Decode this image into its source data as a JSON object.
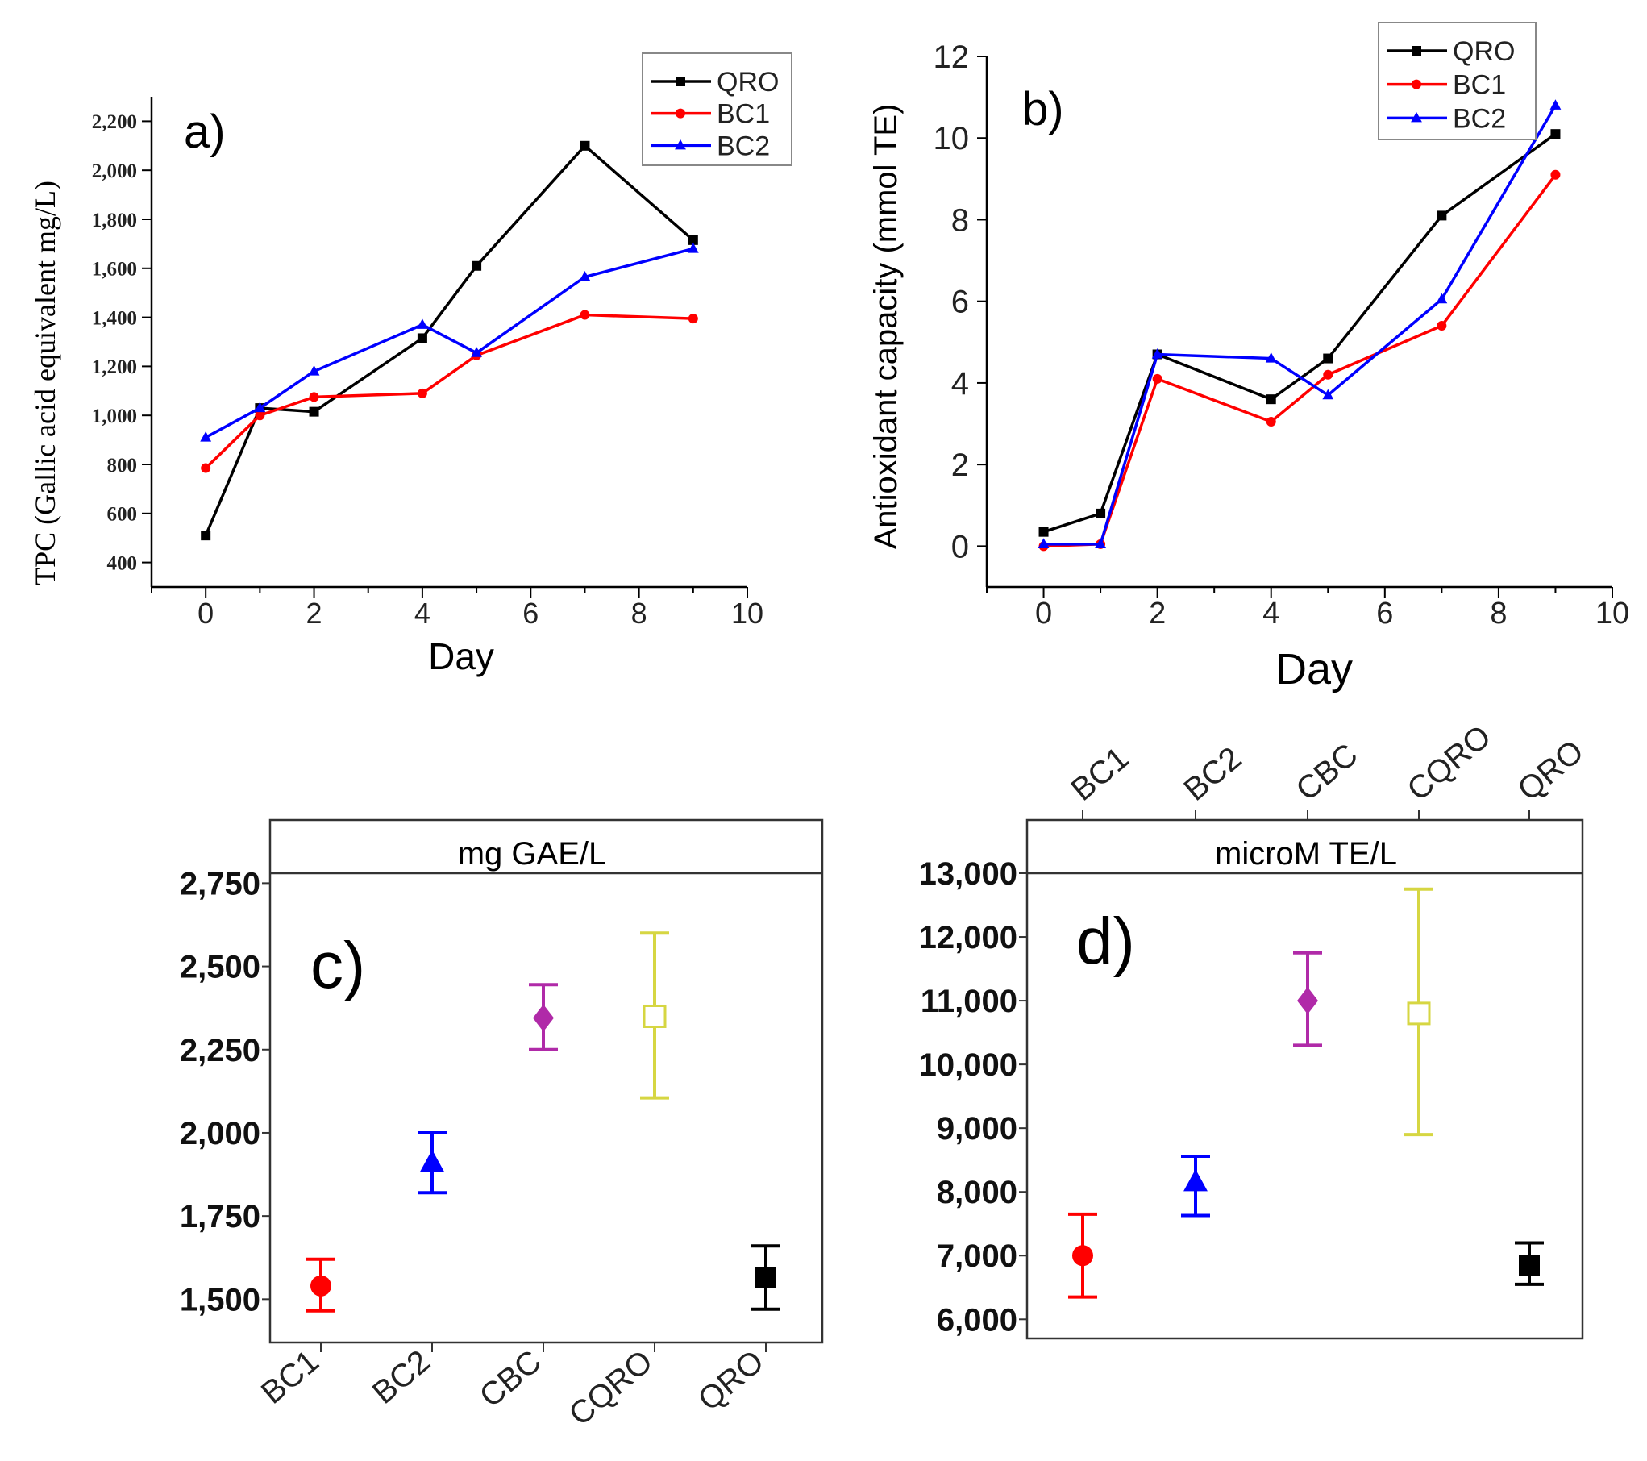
{
  "colors": {
    "QRO": "#000000",
    "BC1": "#ff0000",
    "BC2": "#0000ff",
    "CBC": "#b02aa8",
    "CQRO": "#d6d642",
    "tpc_axis_label": "#7a3b00"
  },
  "chart_data": [
    {
      "id": "a",
      "type": "line",
      "panel_label": "a)",
      "xlabel": "Day",
      "ylabel": "TPC (Gallic acid equivalent mg/L)",
      "xlim": [
        -1,
        10
      ],
      "ylim": [
        300,
        2300
      ],
      "xticks": [
        0,
        2,
        4,
        6,
        8,
        10
      ],
      "yticks": [
        400,
        600,
        800,
        1000,
        1200,
        1400,
        1600,
        1800,
        2000,
        2200
      ],
      "ytick_labels": [
        "400",
        "600",
        "800",
        "1,000",
        "1,200",
        "1,400",
        "1,600",
        "1,800",
        "2,000",
        "2,200"
      ],
      "legend_position": "top-right",
      "x": [
        0,
        1,
        2,
        4,
        5,
        7,
        9
      ],
      "series": [
        {
          "name": "QRO",
          "marker": "square",
          "values": [
            510,
            1030,
            1015,
            1315,
            1610,
            2100,
            1715
          ]
        },
        {
          "name": "BC1",
          "marker": "circle",
          "values": [
            785,
            1000,
            1075,
            1090,
            1245,
            1410,
            1395
          ]
        },
        {
          "name": "BC2",
          "marker": "triangle",
          "values": [
            910,
            1030,
            1180,
            1370,
            1255,
            1565,
            1680
          ]
        }
      ]
    },
    {
      "id": "b",
      "type": "line",
      "panel_label": "b)",
      "xlabel": "Day",
      "ylabel": "Antioxidant capacity (mmol TE)",
      "xlim": [
        -1,
        10
      ],
      "ylim": [
        -1,
        12
      ],
      "xticks": [
        0,
        2,
        4,
        6,
        8,
        10
      ],
      "yticks": [
        0,
        2,
        4,
        6,
        8,
        10,
        12
      ],
      "ytick_labels": [
        "0",
        "2",
        "4",
        "6",
        "8",
        "10",
        "12"
      ],
      "legend_position": "top-right",
      "x": [
        0,
        1,
        2,
        4,
        5,
        7,
        9
      ],
      "series": [
        {
          "name": "QRO",
          "marker": "square",
          "values": [
            0.35,
            0.8,
            4.7,
            3.6,
            4.6,
            8.1,
            10.1
          ]
        },
        {
          "name": "BC1",
          "marker": "circle",
          "values": [
            0.0,
            0.05,
            4.1,
            3.05,
            4.2,
            5.4,
            9.1
          ]
        },
        {
          "name": "BC2",
          "marker": "triangle",
          "values": [
            0.05,
            0.05,
            4.7,
            4.6,
            3.7,
            6.05,
            10.8
          ]
        }
      ]
    },
    {
      "id": "c",
      "type": "scatter",
      "panel_label": "c)",
      "title": "mg GAE/L",
      "categories": [
        "BC1",
        "BC2",
        "CBC",
        "CQRO",
        "QRO"
      ],
      "ylim": [
        1370,
        2780
      ],
      "yticks": [
        1500,
        1750,
        2000,
        2250,
        2500,
        2750
      ],
      "ytick_labels": [
        "1,500",
        "1,750",
        "2,000",
        "2,250",
        "2,500",
        "2,750"
      ],
      "points": [
        {
          "name": "BC1",
          "mean": 1540,
          "low": 1465,
          "high": 1620,
          "marker": "circle"
        },
        {
          "name": "BC2",
          "mean": 1910,
          "low": 1820,
          "high": 2000,
          "marker": "triangle"
        },
        {
          "name": "CBC",
          "mean": 2345,
          "low": 2250,
          "high": 2445,
          "marker": "diamond"
        },
        {
          "name": "CQRO",
          "mean": 2350,
          "low": 2105,
          "high": 2600,
          "marker": "open-square"
        },
        {
          "name": "QRO",
          "mean": 1565,
          "low": 1470,
          "high": 1660,
          "marker": "square"
        }
      ]
    },
    {
      "id": "d",
      "type": "scatter",
      "panel_label": "d)",
      "title": "microM TE/L",
      "categories": [
        "BC1",
        "BC2",
        "CBC",
        "CQRO",
        "QRO"
      ],
      "ylim": [
        5700,
        13000
      ],
      "yticks": [
        6000,
        7000,
        8000,
        9000,
        10000,
        11000,
        12000,
        13000
      ],
      "ytick_labels": [
        "6,000",
        "7,000",
        "8,000",
        "9,000",
        "10,000",
        "11,000",
        "12,000",
        "13,000"
      ],
      "points": [
        {
          "name": "BC1",
          "mean": 7000,
          "low": 6350,
          "high": 7650,
          "marker": "circle"
        },
        {
          "name": "BC2",
          "mean": 8150,
          "low": 7630,
          "high": 8560,
          "marker": "triangle"
        },
        {
          "name": "CBC",
          "mean": 11000,
          "low": 10300,
          "high": 11750,
          "marker": "diamond"
        },
        {
          "name": "CQRO",
          "mean": 10800,
          "low": 8900,
          "high": 12750,
          "marker": "open-square"
        },
        {
          "name": "QRO",
          "mean": 6850,
          "low": 6550,
          "high": 7200,
          "marker": "square"
        }
      ]
    }
  ]
}
